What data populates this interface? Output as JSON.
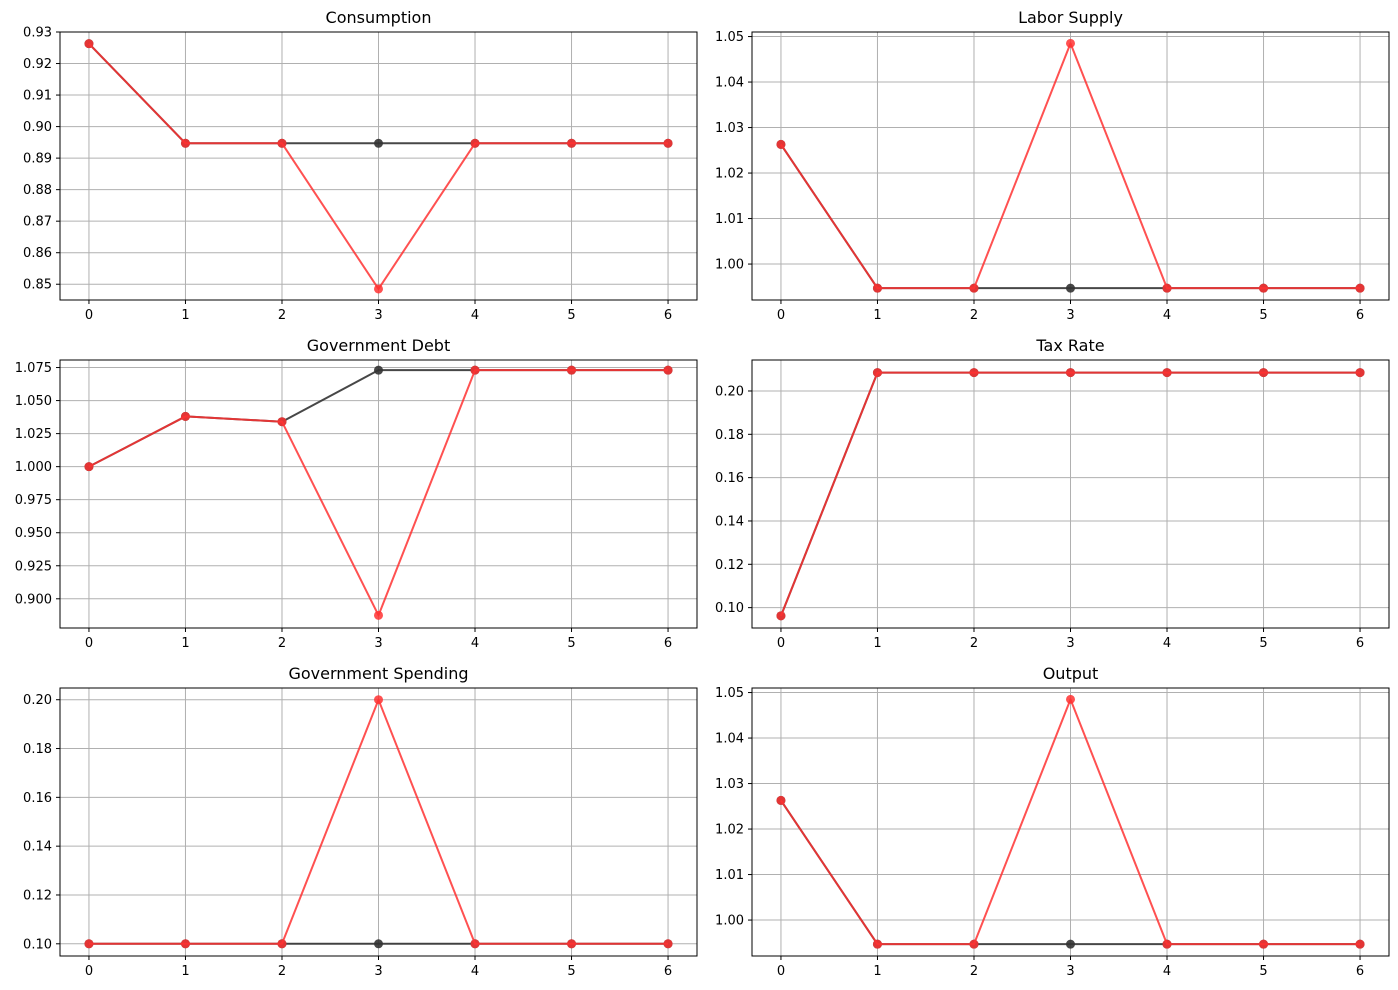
{
  "colors": {
    "baseline": "#333333",
    "shock": "#ff3333",
    "overlap": "#c81e1e",
    "grid": "#b0b0b0",
    "axis": "#000000",
    "background": "#ffffff"
  },
  "chart_data": [
    {
      "type": "line",
      "title": "Consumption",
      "xlabel": "",
      "ylabel": "",
      "x": [
        0,
        1,
        2,
        3,
        4,
        5,
        6
      ],
      "xticks": [
        "0",
        "1",
        "2",
        "3",
        "4",
        "5",
        "6"
      ],
      "xlim": [
        -0.3,
        6.3
      ],
      "ylim": [
        0.845,
        0.93
      ],
      "yticks": [
        "0.85",
        "0.86",
        "0.87",
        "0.88",
        "0.89",
        "0.90",
        "0.91",
        "0.92",
        "0.93"
      ],
      "grid": true,
      "series": [
        {
          "values": [
            0.9263,
            0.8947,
            0.8947,
            0.8947,
            0.8947,
            0.8947,
            0.8947
          ]
        },
        {
          "values": [
            0.9263,
            0.8947,
            0.8947,
            0.8485,
            0.8947,
            0.8947,
            0.8947
          ]
        }
      ]
    },
    {
      "type": "line",
      "title": "Labor Supply",
      "xlabel": "",
      "ylabel": "",
      "x": [
        0,
        1,
        2,
        3,
        4,
        5,
        6
      ],
      "xticks": [
        "0",
        "1",
        "2",
        "3",
        "4",
        "5",
        "6"
      ],
      "xlim": [
        -0.3,
        6.3
      ],
      "ylim": [
        0.9921,
        1.051
      ],
      "yticks": [
        "1.00",
        "1.01",
        "1.02",
        "1.03",
        "1.04",
        "1.05"
      ],
      "grid": true,
      "series": [
        {
          "values": [
            1.0263,
            0.9947,
            0.9947,
            0.9947,
            0.9947,
            0.9947,
            0.9947
          ]
        },
        {
          "values": [
            1.0263,
            0.9947,
            0.9947,
            1.0485,
            0.9947,
            0.9947,
            0.9947
          ]
        }
      ]
    },
    {
      "type": "line",
      "title": "Government Debt",
      "xlabel": "",
      "ylabel": "",
      "x": [
        0,
        1,
        2,
        3,
        4,
        5,
        6
      ],
      "xticks": [
        "0",
        "1",
        "2",
        "3",
        "4",
        "5",
        "6"
      ],
      "xlim": [
        -0.3,
        6.3
      ],
      "ylim": [
        0.8779,
        1.0807
      ],
      "yticks": [
        "0.900",
        "0.925",
        "0.950",
        "0.975",
        "1.000",
        "1.025",
        "1.050",
        "1.075"
      ],
      "grid": true,
      "series": [
        {
          "values": [
            1.0,
            1.038,
            1.034,
            1.073,
            1.073,
            1.073,
            1.073
          ]
        },
        {
          "values": [
            1.0,
            1.038,
            1.034,
            0.8875,
            1.073,
            1.073,
            1.073
          ]
        }
      ]
    },
    {
      "type": "line",
      "title": "Tax Rate",
      "xlabel": "",
      "ylabel": "",
      "x": [
        0,
        1,
        2,
        3,
        4,
        5,
        6
      ],
      "xticks": [
        "0",
        "1",
        "2",
        "3",
        "4",
        "5",
        "6"
      ],
      "xlim": [
        -0.3,
        6.3
      ],
      "ylim": [
        0.0906,
        0.2143
      ],
      "yticks": [
        "0.10",
        "0.12",
        "0.14",
        "0.16",
        "0.18",
        "0.20"
      ],
      "grid": true,
      "series": [
        {
          "values": [
            0.0962,
            0.2085,
            0.2085,
            0.2085,
            0.2085,
            0.2085,
            0.2085
          ]
        },
        {
          "values": [
            0.0962,
            0.2085,
            0.2085,
            0.2085,
            0.2085,
            0.2085,
            0.2085
          ]
        }
      ]
    },
    {
      "type": "line",
      "title": "Government Spending",
      "xlabel": "",
      "ylabel": "",
      "x": [
        0,
        1,
        2,
        3,
        4,
        5,
        6
      ],
      "xticks": [
        "0",
        "1",
        "2",
        "3",
        "4",
        "5",
        "6"
      ],
      "xlim": [
        -0.3,
        6.3
      ],
      "ylim": [
        0.095,
        0.2048
      ],
      "yticks": [
        "0.10",
        "0.12",
        "0.14",
        "0.16",
        "0.18",
        "0.20"
      ],
      "grid": true,
      "series": [
        {
          "values": [
            0.1,
            0.1,
            0.1,
            0.1,
            0.1,
            0.1,
            0.1
          ]
        },
        {
          "values": [
            0.1,
            0.1,
            0.1,
            0.2,
            0.1,
            0.1,
            0.1
          ]
        }
      ]
    },
    {
      "type": "line",
      "title": "Output",
      "xlabel": "",
      "ylabel": "",
      "x": [
        0,
        1,
        2,
        3,
        4,
        5,
        6
      ],
      "xticks": [
        "0",
        "1",
        "2",
        "3",
        "4",
        "5",
        "6"
      ],
      "xlim": [
        -0.3,
        6.3
      ],
      "ylim": [
        0.9921,
        1.051
      ],
      "yticks": [
        "1.00",
        "1.01",
        "1.02",
        "1.03",
        "1.04",
        "1.05"
      ],
      "grid": true,
      "series": [
        {
          "values": [
            1.0263,
            0.9947,
            0.9947,
            0.9947,
            0.9947,
            0.9947,
            0.9947
          ]
        },
        {
          "values": [
            1.0263,
            0.9947,
            0.9947,
            1.0485,
            0.9947,
            0.9947,
            0.9947
          ]
        }
      ]
    }
  ]
}
